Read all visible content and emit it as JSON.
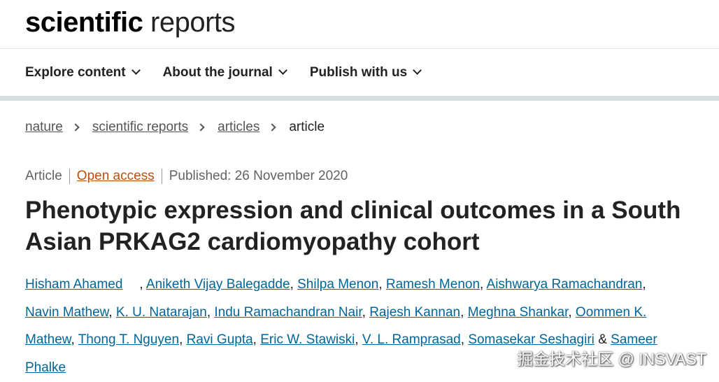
{
  "header": {
    "logo_bold": "scientific",
    "logo_light": "reports"
  },
  "nav": [
    "Explore content",
    "About the journal",
    "Publish with us"
  ],
  "breadcrumb": [
    "nature",
    "scientific reports",
    "articles",
    "article"
  ],
  "meta": {
    "type": "Article",
    "access": "Open access",
    "published": "Published: 26 November 2020"
  },
  "article": {
    "title": "Phenotypic expression and clinical outcomes in a South Asian PRKAG2 cardiomyopathy cohort",
    "authors": [
      "Hisham Ahamed",
      "Aniketh Vijay Balegadde",
      "Shilpa Menon",
      "Ramesh Menon",
      "Aishwarya Ramachandran",
      "Navin Mathew",
      "K. U. Natarajan",
      "Indu Ramachandran Nair",
      "Rajesh Kannan",
      "Meghna Shankar",
      "Oommen K. Mathew",
      "Thong T. Nguyen",
      "Ravi Gupta",
      "Eric W. Stawiski",
      "V. L. Ramprasad",
      "Somasekar Seshagiri",
      "Sameer Phalke"
    ],
    "separator": ",",
    "conjunction": "&"
  },
  "watermark": "掘金技术社区 @ INSVAST"
}
